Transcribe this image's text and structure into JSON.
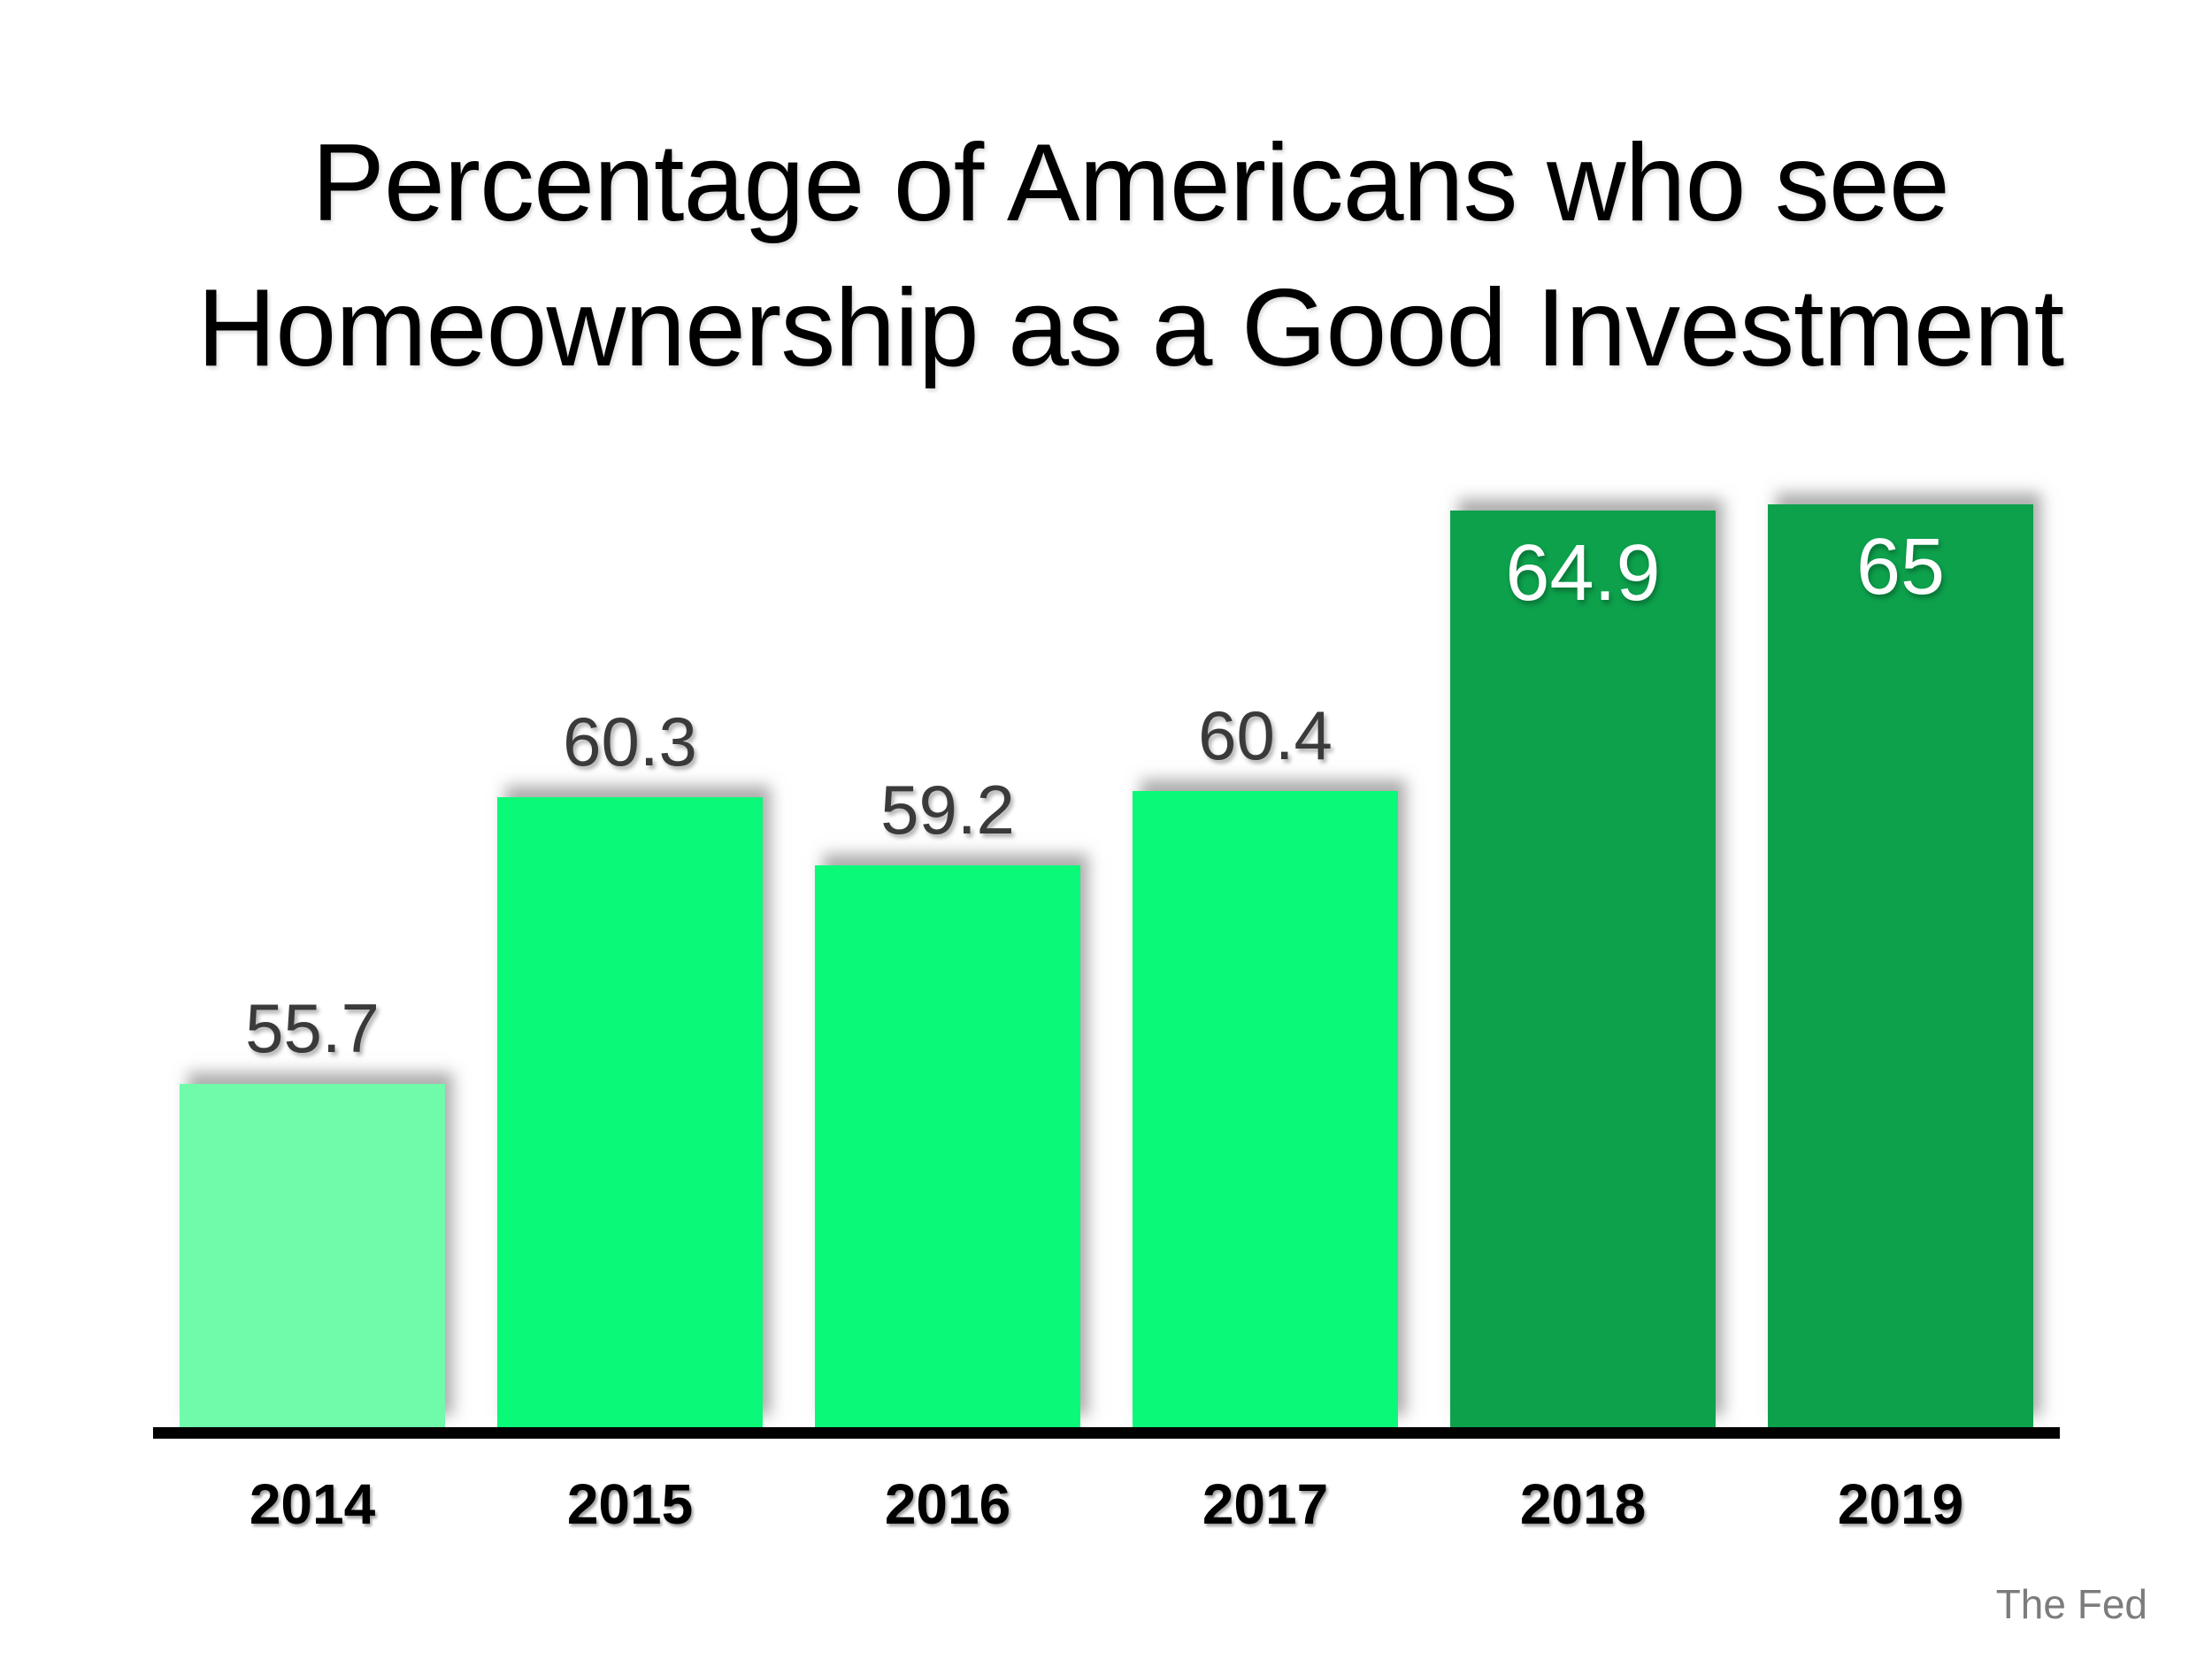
{
  "title": {
    "line1": "Percentage of Americans who see",
    "line2": "Homeownership as a Good Investment"
  },
  "attribution": "The Fed",
  "colors": {
    "background": "#FFFFFF",
    "title_text": "#000000",
    "axis_line": "#000000",
    "bar_light_green": "#6FFBA9",
    "bar_bright_green": "#0BF978",
    "bar_dark_green": "#0DA14C",
    "value_label_gray": "#3A3A3A",
    "value_label_white": "#FFFFFF",
    "year_label_black": "#000000",
    "attribution_gray": "#7C7C7C"
  },
  "chart_data": {
    "type": "bar",
    "title": "Percentage of Americans who see Homeownership as a Good Investment",
    "xlabel": "",
    "ylabel": "",
    "categories": [
      "2014",
      "2015",
      "2016",
      "2017",
      "2018",
      "2019"
    ],
    "values": [
      55.7,
      60.3,
      59.2,
      60.4,
      64.9,
      65
    ],
    "series": [
      {
        "name": "Percentage of Americans who see homeownership as a good investment",
        "values": [
          55.7,
          60.3,
          59.2,
          60.4,
          64.9,
          65
        ]
      }
    ],
    "ylim": [
      50.2,
      73.1
    ],
    "y_axis_visible": false,
    "grid": false,
    "legend": false,
    "data_labels_visible": true,
    "bars": [
      {
        "category": "2014",
        "value": 55.7,
        "label": "55.7",
        "color": "#6FFBA9",
        "label_placement": "above",
        "label_color": "#3A3A3A"
      },
      {
        "category": "2015",
        "value": 60.3,
        "label": "60.3",
        "color": "#0BF978",
        "label_placement": "above",
        "label_color": "#3A3A3A"
      },
      {
        "category": "2016",
        "value": 59.2,
        "label": "59.2",
        "color": "#0BF978",
        "label_placement": "above",
        "label_color": "#3A3A3A"
      },
      {
        "category": "2017",
        "value": 60.4,
        "label": "60.4",
        "color": "#0BF978",
        "label_placement": "above",
        "label_color": "#3A3A3A"
      },
      {
        "category": "2018",
        "value": 64.9,
        "label": "64.9",
        "color": "#0DA14C",
        "label_placement": "inside",
        "label_color": "#FFFFFF"
      },
      {
        "category": "2019",
        "value": 65,
        "label": "65",
        "color": "#0DA14C",
        "label_placement": "inside",
        "label_color": "#FFFFFF"
      }
    ]
  }
}
